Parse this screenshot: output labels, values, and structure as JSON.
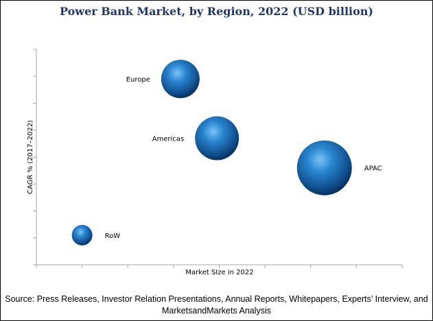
{
  "chart_data": {
    "type": "bubble",
    "title": "Power Bank Market, by Region, 2022 (USD billion)",
    "xlabel": "Market SIze in 2022",
    "ylabel": "CAGR % (2017–2022)",
    "xlim": [
      0,
      8
    ],
    "ylim": [
      0,
      8
    ],
    "x_tick_labels_shown": false,
    "y_tick_labels_shown": false,
    "grid": false,
    "bubble_color": "#1e6fb8",
    "points": [
      {
        "label": "Europe",
        "x": 3.15,
        "y": 6.9,
        "size": 28
      },
      {
        "label": "Americas",
        "x": 3.95,
        "y": 4.7,
        "size": 32
      },
      {
        "label": "APAC",
        "x": 6.3,
        "y": 3.6,
        "size": 40
      },
      {
        "label": "RoW",
        "x": 1.0,
        "y": 1.1,
        "size": 15
      }
    ]
  },
  "source": "Source: Press Releases, Investor Relation Presentations, Annual Reports, Whitepapers, Experts’ Interview, and MarketsandMarkets Analysis"
}
